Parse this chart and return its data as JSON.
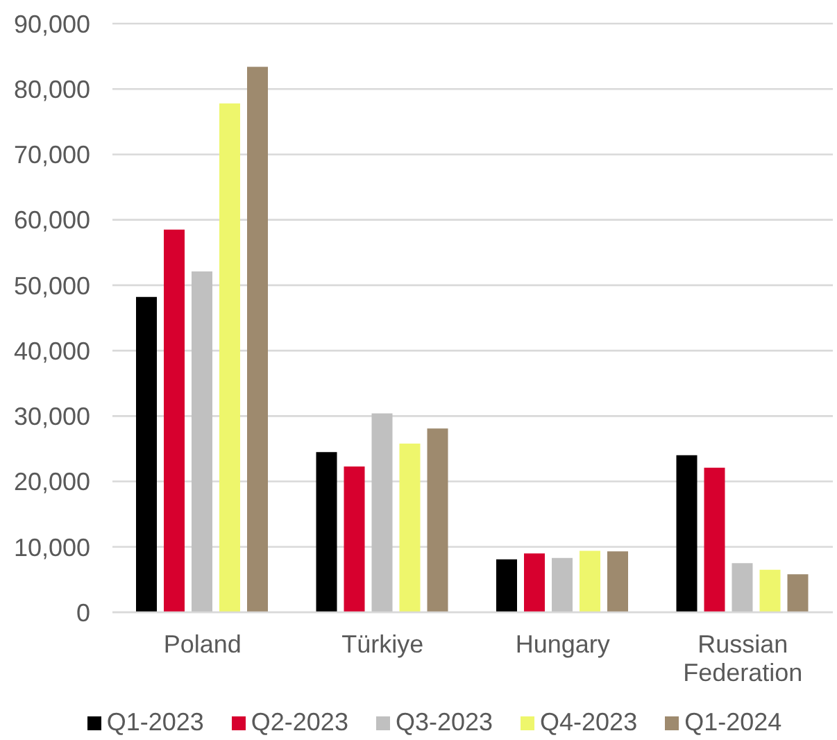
{
  "chart_data": {
    "type": "bar",
    "categories": [
      "Poland",
      "Türkiye",
      "Hungary",
      "Russian Federation"
    ],
    "series": [
      {
        "name": "Q1-2023",
        "color": "#000000",
        "values": [
          48200,
          24500,
          8100,
          24000
        ]
      },
      {
        "name": "Q2-2023",
        "color": "#d7002e",
        "values": [
          58500,
          22300,
          9000,
          22100
        ]
      },
      {
        "name": "Q3-2023",
        "color": "#c0c0c0",
        "values": [
          52100,
          30400,
          8300,
          7500
        ]
      },
      {
        "name": "Q4-2023",
        "color": "#eef66c",
        "values": [
          77800,
          25800,
          9400,
          6500
        ]
      },
      {
        "name": "Q1-2024",
        "color": "#9e8a6e",
        "values": [
          83400,
          28100,
          9300,
          5800
        ]
      }
    ],
    "ylim": [
      0,
      90000
    ],
    "yticks": [
      {
        "value": 0,
        "label": "0"
      },
      {
        "value": 10000,
        "label": "10,000"
      },
      {
        "value": 20000,
        "label": "20,000"
      },
      {
        "value": 30000,
        "label": "30,000"
      },
      {
        "value": 40000,
        "label": "40,000"
      },
      {
        "value": 50000,
        "label": "50,000"
      },
      {
        "value": 60000,
        "label": "60,000"
      },
      {
        "value": 70000,
        "label": "70,000"
      },
      {
        "value": 80000,
        "label": "80,000"
      },
      {
        "value": 90000,
        "label": "90,000"
      }
    ],
    "grid": "y",
    "legend": "bottom"
  }
}
